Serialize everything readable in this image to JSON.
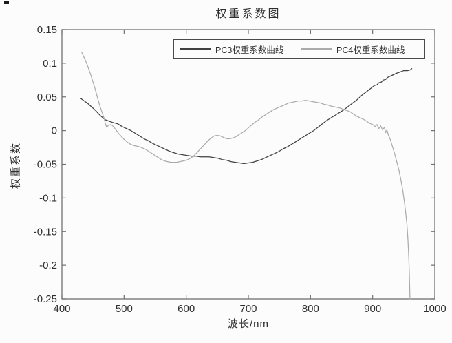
{
  "figure": {
    "background": "#fcfcfc",
    "text_color": "#2f2f2f",
    "axis_color": "#707070"
  },
  "chart_data": {
    "type": "line",
    "title": "权重系数图",
    "xlabel": "波长/nm",
    "ylabel": "权重系数",
    "xlim": [
      400,
      1000
    ],
    "ylim": [
      -0.25,
      0.15
    ],
    "grid": false,
    "legend_position": "top-inside",
    "xticks": [
      {
        "value": 400,
        "label": "400"
      },
      {
        "value": 500,
        "label": "500"
      },
      {
        "value": 600,
        "label": "600"
      },
      {
        "value": 700,
        "label": "700"
      },
      {
        "value": 800,
        "label": "800"
      },
      {
        "value": 900,
        "label": "900"
      },
      {
        "value": 1000,
        "label": "1000"
      }
    ],
    "yticks": [
      {
        "value": 0.15,
        "label": "0.15"
      },
      {
        "value": 0.1,
        "label": "0.1"
      },
      {
        "value": 0.05,
        "label": "0.05"
      },
      {
        "value": 0,
        "label": "0"
      },
      {
        "value": -0.05,
        "label": "-0.05"
      },
      {
        "value": -0.1,
        "label": "-0.1"
      },
      {
        "value": -0.15,
        "label": "-0.15"
      },
      {
        "value": -0.2,
        "label": "-0.2"
      },
      {
        "value": -0.25,
        "label": "-0.25"
      }
    ],
    "series": [
      {
        "name": "PC3权重系数曲线",
        "color": "#404040",
        "points": [
          [
            430,
            0.048
          ],
          [
            436,
            0.044
          ],
          [
            442,
            0.04
          ],
          [
            448,
            0.035
          ],
          [
            454,
            0.03
          ],
          [
            460,
            0.024
          ],
          [
            466,
            0.019
          ],
          [
            470,
            0.016
          ],
          [
            476,
            0.014
          ],
          [
            482,
            0.012
          ],
          [
            490,
            0.01
          ],
          [
            497,
            0.006
          ],
          [
            504,
            0.003
          ],
          [
            511,
            0.0
          ],
          [
            518,
            -0.004
          ],
          [
            525,
            -0.008
          ],
          [
            532,
            -0.012
          ],
          [
            539,
            -0.015
          ],
          [
            546,
            -0.019
          ],
          [
            553,
            -0.022
          ],
          [
            560,
            -0.025
          ],
          [
            567,
            -0.028
          ],
          [
            574,
            -0.031
          ],
          [
            581,
            -0.033
          ],
          [
            588,
            -0.035
          ],
          [
            595,
            -0.036
          ],
          [
            602,
            -0.037
          ],
          [
            609,
            -0.038
          ],
          [
            616,
            -0.038
          ],
          [
            623,
            -0.039
          ],
          [
            630,
            -0.039
          ],
          [
            637,
            -0.039
          ],
          [
            644,
            -0.04
          ],
          [
            651,
            -0.041
          ],
          [
            658,
            -0.043
          ],
          [
            665,
            -0.044
          ],
          [
            672,
            -0.046
          ],
          [
            679,
            -0.047
          ],
          [
            686,
            -0.048
          ],
          [
            693,
            -0.049
          ],
          [
            700,
            -0.048
          ],
          [
            707,
            -0.047
          ],
          [
            714,
            -0.045
          ],
          [
            721,
            -0.043
          ],
          [
            728,
            -0.04
          ],
          [
            735,
            -0.037
          ],
          [
            742,
            -0.034
          ],
          [
            749,
            -0.031
          ],
          [
            756,
            -0.027
          ],
          [
            763,
            -0.024
          ],
          [
            770,
            -0.02
          ],
          [
            777,
            -0.016
          ],
          [
            784,
            -0.012
          ],
          [
            791,
            -0.008
          ],
          [
            798,
            -0.004
          ],
          [
            805,
            0.0
          ],
          [
            812,
            0.005
          ],
          [
            819,
            0.01
          ],
          [
            826,
            0.015
          ],
          [
            833,
            0.019
          ],
          [
            840,
            0.023
          ],
          [
            847,
            0.027
          ],
          [
            854,
            0.031
          ],
          [
            861,
            0.036
          ],
          [
            868,
            0.041
          ],
          [
            875,
            0.046
          ],
          [
            882,
            0.052
          ],
          [
            889,
            0.057
          ],
          [
            896,
            0.062
          ],
          [
            903,
            0.067
          ],
          [
            907,
            0.068
          ],
          [
            910,
            0.071
          ],
          [
            914,
            0.072
          ],
          [
            917,
            0.075
          ],
          [
            921,
            0.076
          ],
          [
            924,
            0.079
          ],
          [
            931,
            0.082
          ],
          [
            938,
            0.085
          ],
          [
            944,
            0.087
          ],
          [
            950,
            0.089
          ],
          [
            956,
            0.089
          ],
          [
            960,
            0.09
          ],
          [
            963,
            0.092
          ]
        ]
      },
      {
        "name": "PC4权重系数曲线",
        "color": "#ababab",
        "points": [
          [
            432,
            0.116
          ],
          [
            435,
            0.11
          ],
          [
            438,
            0.104
          ],
          [
            441,
            0.097
          ],
          [
            444,
            0.089
          ],
          [
            447,
            0.081
          ],
          [
            450,
            0.072
          ],
          [
            453,
            0.063
          ],
          [
            456,
            0.053
          ],
          [
            459,
            0.043
          ],
          [
            462,
            0.034
          ],
          [
            465,
            0.026
          ],
          [
            468,
            0.018
          ],
          [
            470,
            0.01
          ],
          [
            472,
            0.005
          ],
          [
            475,
            0.008
          ],
          [
            479,
            0.009
          ],
          [
            483,
            0.006
          ],
          [
            487,
            0.001
          ],
          [
            491,
            -0.004
          ],
          [
            495,
            -0.008
          ],
          [
            500,
            -0.013
          ],
          [
            505,
            -0.017
          ],
          [
            510,
            -0.02
          ],
          [
            515,
            -0.022
          ],
          [
            520,
            -0.023
          ],
          [
            525,
            -0.024
          ],
          [
            530,
            -0.026
          ],
          [
            535,
            -0.028
          ],
          [
            540,
            -0.031
          ],
          [
            545,
            -0.034
          ],
          [
            550,
            -0.037
          ],
          [
            555,
            -0.04
          ],
          [
            560,
            -0.043
          ],
          [
            565,
            -0.045
          ],
          [
            570,
            -0.046
          ],
          [
            575,
            -0.047
          ],
          [
            580,
            -0.047
          ],
          [
            585,
            -0.047
          ],
          [
            590,
            -0.046
          ],
          [
            595,
            -0.045
          ],
          [
            600,
            -0.044
          ],
          [
            605,
            -0.042
          ],
          [
            610,
            -0.039
          ],
          [
            615,
            -0.035
          ],
          [
            620,
            -0.03
          ],
          [
            625,
            -0.025
          ],
          [
            630,
            -0.02
          ],
          [
            635,
            -0.015
          ],
          [
            640,
            -0.011
          ],
          [
            645,
            -0.008
          ],
          [
            650,
            -0.007
          ],
          [
            655,
            -0.008
          ],
          [
            660,
            -0.01
          ],
          [
            665,
            -0.012
          ],
          [
            670,
            -0.012
          ],
          [
            675,
            -0.011
          ],
          [
            680,
            -0.009
          ],
          [
            685,
            -0.006
          ],
          [
            690,
            -0.003
          ],
          [
            695,
            0.0
          ],
          [
            700,
            0.004
          ],
          [
            705,
            0.008
          ],
          [
            710,
            0.012
          ],
          [
            715,
            0.015
          ],
          [
            720,
            0.019
          ],
          [
            725,
            0.022
          ],
          [
            730,
            0.025
          ],
          [
            735,
            0.028
          ],
          [
            740,
            0.031
          ],
          [
            745,
            0.033
          ],
          [
            750,
            0.035
          ],
          [
            755,
            0.037
          ],
          [
            760,
            0.039
          ],
          [
            765,
            0.041
          ],
          [
            770,
            0.042
          ],
          [
            775,
            0.043
          ],
          [
            780,
            0.044
          ],
          [
            786,
            0.044
          ],
          [
            792,
            0.045
          ],
          [
            798,
            0.044
          ],
          [
            804,
            0.043
          ],
          [
            810,
            0.042
          ],
          [
            816,
            0.041
          ],
          [
            822,
            0.039
          ],
          [
            828,
            0.038
          ],
          [
            834,
            0.036
          ],
          [
            840,
            0.035
          ],
          [
            846,
            0.034
          ],
          [
            852,
            0.032
          ],
          [
            858,
            0.03
          ],
          [
            864,
            0.028
          ],
          [
            870,
            0.024
          ],
          [
            875,
            0.021
          ],
          [
            880,
            0.019
          ],
          [
            885,
            0.017
          ],
          [
            890,
            0.014
          ],
          [
            895,
            0.011
          ],
          [
            900,
            0.009
          ],
          [
            904,
            0.006
          ],
          [
            907,
            0.009
          ],
          [
            910,
            0.003
          ],
          [
            913,
            0.007
          ],
          [
            916,
            0.001
          ],
          [
            919,
            0.005
          ],
          [
            921,
            -0.003
          ],
          [
            923,
            0.001
          ],
          [
            925,
            -0.006
          ],
          [
            927,
            -0.01
          ],
          [
            929,
            -0.015
          ],
          [
            931,
            -0.021
          ],
          [
            933,
            -0.027
          ],
          [
            935,
            -0.033
          ],
          [
            937,
            -0.04
          ],
          [
            939,
            -0.047
          ],
          [
            941,
            -0.054
          ],
          [
            943,
            -0.062
          ],
          [
            945,
            -0.071
          ],
          [
            947,
            -0.081
          ],
          [
            949,
            -0.092
          ],
          [
            951,
            -0.105
          ],
          [
            953,
            -0.12
          ],
          [
            955,
            -0.138
          ],
          [
            956,
            -0.151
          ],
          [
            957,
            -0.167
          ],
          [
            958,
            -0.187
          ],
          [
            959,
            -0.212
          ],
          [
            960,
            -0.25
          ]
        ]
      }
    ]
  }
}
